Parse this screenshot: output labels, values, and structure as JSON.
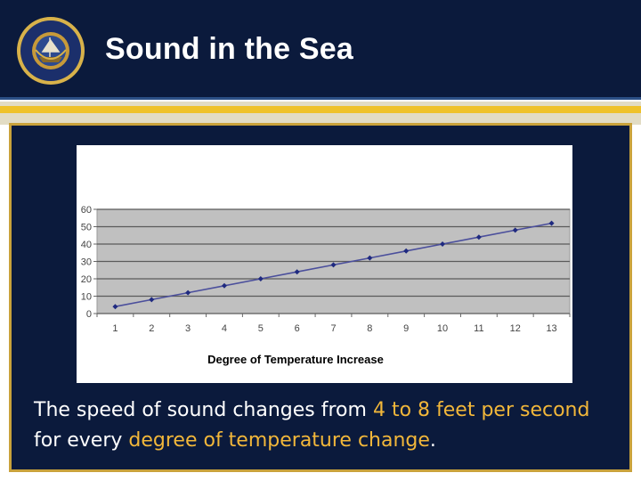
{
  "slide": {
    "title": "Sound in the Sea",
    "logo": {
      "text_top": "NAVY",
      "text_bottom": "JROTC"
    }
  },
  "caption": {
    "part1": "The speed of sound changes from ",
    "highlight1": "4 to 8 feet per second",
    "part2": "for every ",
    "highlight2": "degree of temperature change",
    "part3": "."
  },
  "colors": {
    "navy": "#0b1a3c",
    "gold": "#efc22a",
    "highlight": "#f2b73a",
    "line": "#4b4f9c",
    "plot_bg": "#c0c0c0"
  },
  "chart_data": {
    "type": "line",
    "x": [
      1,
      2,
      3,
      4,
      5,
      6,
      7,
      8,
      9,
      10,
      11,
      12,
      13
    ],
    "series": [
      {
        "values": [
          4,
          8,
          12,
          16,
          20,
          24,
          28,
          32,
          36,
          40,
          44,
          48,
          52
        ]
      }
    ],
    "xlabel": "Degree of Temperature Increase",
    "ylabel": "",
    "ylim": [
      0,
      60
    ],
    "yticks": [
      0,
      10,
      20,
      30,
      40,
      50,
      60
    ],
    "grid": true,
    "legend": "none"
  }
}
